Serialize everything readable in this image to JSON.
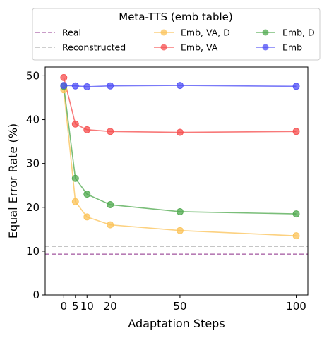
{
  "chart_data": {
    "type": "line",
    "legend_title": "Meta-TTS (emb table)",
    "legend_placement": "top-outside",
    "xlabel": "Adaptation Steps",
    "ylabel": "Equal Error Rate (%)",
    "xlim": [
      -8,
      105
    ],
    "ylim": [
      0,
      52
    ],
    "xticks": [
      0,
      5,
      10,
      20,
      50,
      100
    ],
    "yticks": [
      0,
      10,
      20,
      30,
      40,
      50
    ],
    "grid": false,
    "x": [
      0,
      5,
      10,
      20,
      50,
      100
    ],
    "reference_lines": [
      {
        "name": "Real",
        "value": 9.3,
        "color": "#b77cb5"
      },
      {
        "name": "Reconstructed",
        "value": 11.1,
        "color": "#bdbdbd"
      }
    ],
    "series": [
      {
        "name": "Emb, VA, D",
        "color": "#fbc256",
        "values": [
          46.8,
          21.3,
          17.8,
          16.0,
          14.7,
          13.5
        ]
      },
      {
        "name": "Emb, VA",
        "color": "#f54c4c",
        "values": [
          49.6,
          39.0,
          37.7,
          37.3,
          37.1,
          37.3
        ]
      },
      {
        "name": "Emb, D",
        "color": "#4ea84c",
        "values": [
          47.6,
          26.6,
          23.0,
          20.6,
          19.0,
          18.5
        ]
      },
      {
        "name": "Emb",
        "color": "#4d4df5",
        "values": [
          47.8,
          47.7,
          47.5,
          47.7,
          47.8,
          47.6
        ]
      }
    ]
  }
}
